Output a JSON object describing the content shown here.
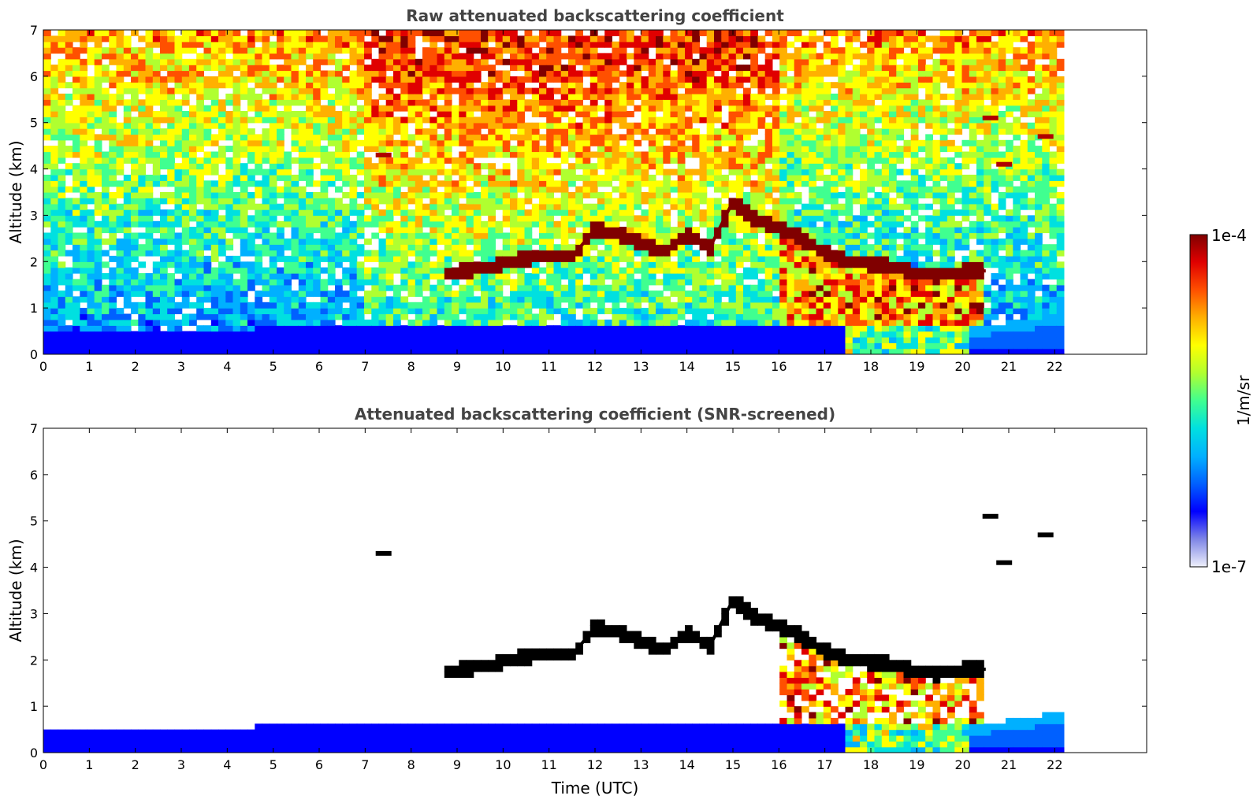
{
  "chart_data": [
    {
      "type": "heatmap",
      "title": "Raw attenuated backscattering coefficient",
      "xlabel": "",
      "ylabel": "Altitude (km)",
      "xlim": [
        0,
        24
      ],
      "ylim": [
        0,
        7
      ],
      "x_ticks": [
        0,
        1,
        2,
        3,
        4,
        5,
        6,
        7,
        8,
        9,
        10,
        11,
        12,
        13,
        14,
        15,
        16,
        17,
        18,
        19,
        20,
        21,
        22
      ],
      "y_ticks": [
        0,
        1,
        2,
        3,
        4,
        5,
        6,
        7
      ],
      "data_end_time": 22.2,
      "screened": false,
      "boundary_layer_top_km": [
        [
          0,
          0.5
        ],
        [
          2,
          0.5
        ],
        [
          4,
          0.5
        ],
        [
          5,
          0.6
        ],
        [
          6,
          0.6
        ],
        [
          7,
          0.6
        ],
        [
          8,
          0.6
        ],
        [
          9,
          0.6
        ],
        [
          10,
          0.6
        ],
        [
          11,
          0.6
        ],
        [
          12,
          0.6
        ],
        [
          13,
          0.6
        ],
        [
          14,
          0.6
        ],
        [
          15,
          0.6
        ],
        [
          16,
          0.6
        ],
        [
          17,
          0.6
        ],
        [
          18,
          0.6
        ],
        [
          19,
          0.6
        ],
        [
          20,
          0.6
        ],
        [
          20.5,
          0.6
        ],
        [
          21,
          0.7
        ],
        [
          22.2,
          0.9
        ]
      ],
      "cloud_layer_km": [
        [
          8.8,
          1.75
        ],
        [
          9.5,
          1.85
        ],
        [
          10.2,
          2.0
        ],
        [
          10.8,
          2.15
        ],
        [
          11.5,
          2.1
        ],
        [
          12.0,
          2.7
        ],
        [
          12.5,
          2.6
        ],
        [
          13.0,
          2.4
        ],
        [
          13.5,
          2.2
        ],
        [
          14.0,
          2.6
        ],
        [
          14.5,
          2.3
        ],
        [
          15.0,
          3.3
        ],
        [
          15.5,
          2.9
        ],
        [
          16.0,
          2.75
        ],
        [
          16.5,
          2.5
        ],
        [
          17.0,
          2.2
        ],
        [
          17.5,
          2.0
        ],
        [
          18.0,
          1.95
        ],
        [
          18.5,
          1.9
        ],
        [
          19.0,
          1.75
        ],
        [
          19.5,
          1.7
        ],
        [
          20.0,
          1.8
        ],
        [
          20.5,
          1.8
        ]
      ],
      "elevated_features_km": [
        {
          "time": 20.6,
          "altitude": 5.1
        },
        {
          "time": 20.9,
          "altitude": 4.1
        },
        {
          "time": 21.8,
          "altitude": 4.7
        },
        {
          "time": 7.4,
          "altitude": 4.3
        }
      ]
    },
    {
      "type": "heatmap",
      "title": "Attenuated backscattering coefficient (SNR-screened)",
      "xlabel": "Time (UTC)",
      "ylabel": "Altitude (km)",
      "xlim": [
        0,
        24
      ],
      "ylim": [
        0,
        7
      ],
      "x_ticks": [
        0,
        1,
        2,
        3,
        4,
        5,
        6,
        7,
        8,
        9,
        10,
        11,
        12,
        13,
        14,
        15,
        16,
        17,
        18,
        19,
        20,
        21,
        22
      ],
      "y_ticks": [
        0,
        1,
        2,
        3,
        4,
        5,
        6,
        7
      ],
      "data_end_time": 22.2,
      "screened": true,
      "boundary_layer_top_km": [
        [
          0,
          0.5
        ],
        [
          2,
          0.5
        ],
        [
          4,
          0.5
        ],
        [
          5,
          0.6
        ],
        [
          6,
          0.6
        ],
        [
          7,
          0.6
        ],
        [
          8,
          0.6
        ],
        [
          9,
          0.6
        ],
        [
          10,
          0.6
        ],
        [
          11,
          0.6
        ],
        [
          12,
          0.6
        ],
        [
          13,
          0.6
        ],
        [
          14,
          0.6
        ],
        [
          15,
          0.6
        ],
        [
          16,
          0.6
        ],
        [
          17,
          0.6
        ],
        [
          18,
          0.6
        ],
        [
          19,
          0.6
        ],
        [
          20,
          0.6
        ],
        [
          20.5,
          0.6
        ],
        [
          21,
          0.7
        ],
        [
          22.2,
          0.9
        ]
      ],
      "cloud_layer_km": [
        [
          8.8,
          1.75
        ],
        [
          9.5,
          1.85
        ],
        [
          10.2,
          2.0
        ],
        [
          10.8,
          2.15
        ],
        [
          11.5,
          2.1
        ],
        [
          12.0,
          2.7
        ],
        [
          12.5,
          2.6
        ],
        [
          13.0,
          2.4
        ],
        [
          13.5,
          2.2
        ],
        [
          14.0,
          2.6
        ],
        [
          14.5,
          2.3
        ],
        [
          15.0,
          3.3
        ],
        [
          15.5,
          2.9
        ],
        [
          16.0,
          2.75
        ],
        [
          16.5,
          2.5
        ],
        [
          17.0,
          2.2
        ],
        [
          17.5,
          2.0
        ],
        [
          18.0,
          1.95
        ],
        [
          18.5,
          1.9
        ],
        [
          19.0,
          1.75
        ],
        [
          19.5,
          1.7
        ],
        [
          20.0,
          1.8
        ],
        [
          20.5,
          1.8
        ]
      ],
      "elevated_features_km": [
        {
          "time": 20.6,
          "altitude": 5.1
        },
        {
          "time": 20.9,
          "altitude": 4.1
        },
        {
          "time": 21.8,
          "altitude": 4.7
        },
        {
          "time": 7.4,
          "altitude": 4.3
        }
      ]
    }
  ],
  "colorbar": {
    "max_label": "1e-4",
    "min_label": "1e-7",
    "unit_label": "1/m/sr",
    "scale": "log",
    "range": [
      1e-07,
      0.0001
    ],
    "colors": [
      "#eef0fb",
      "#7f86e6",
      "#0000ff",
      "#0060ff",
      "#00b0ff",
      "#00e0e0",
      "#40ff90",
      "#b0ff30",
      "#ffff00",
      "#ffb000",
      "#ff5000",
      "#e00000",
      "#800000"
    ]
  }
}
